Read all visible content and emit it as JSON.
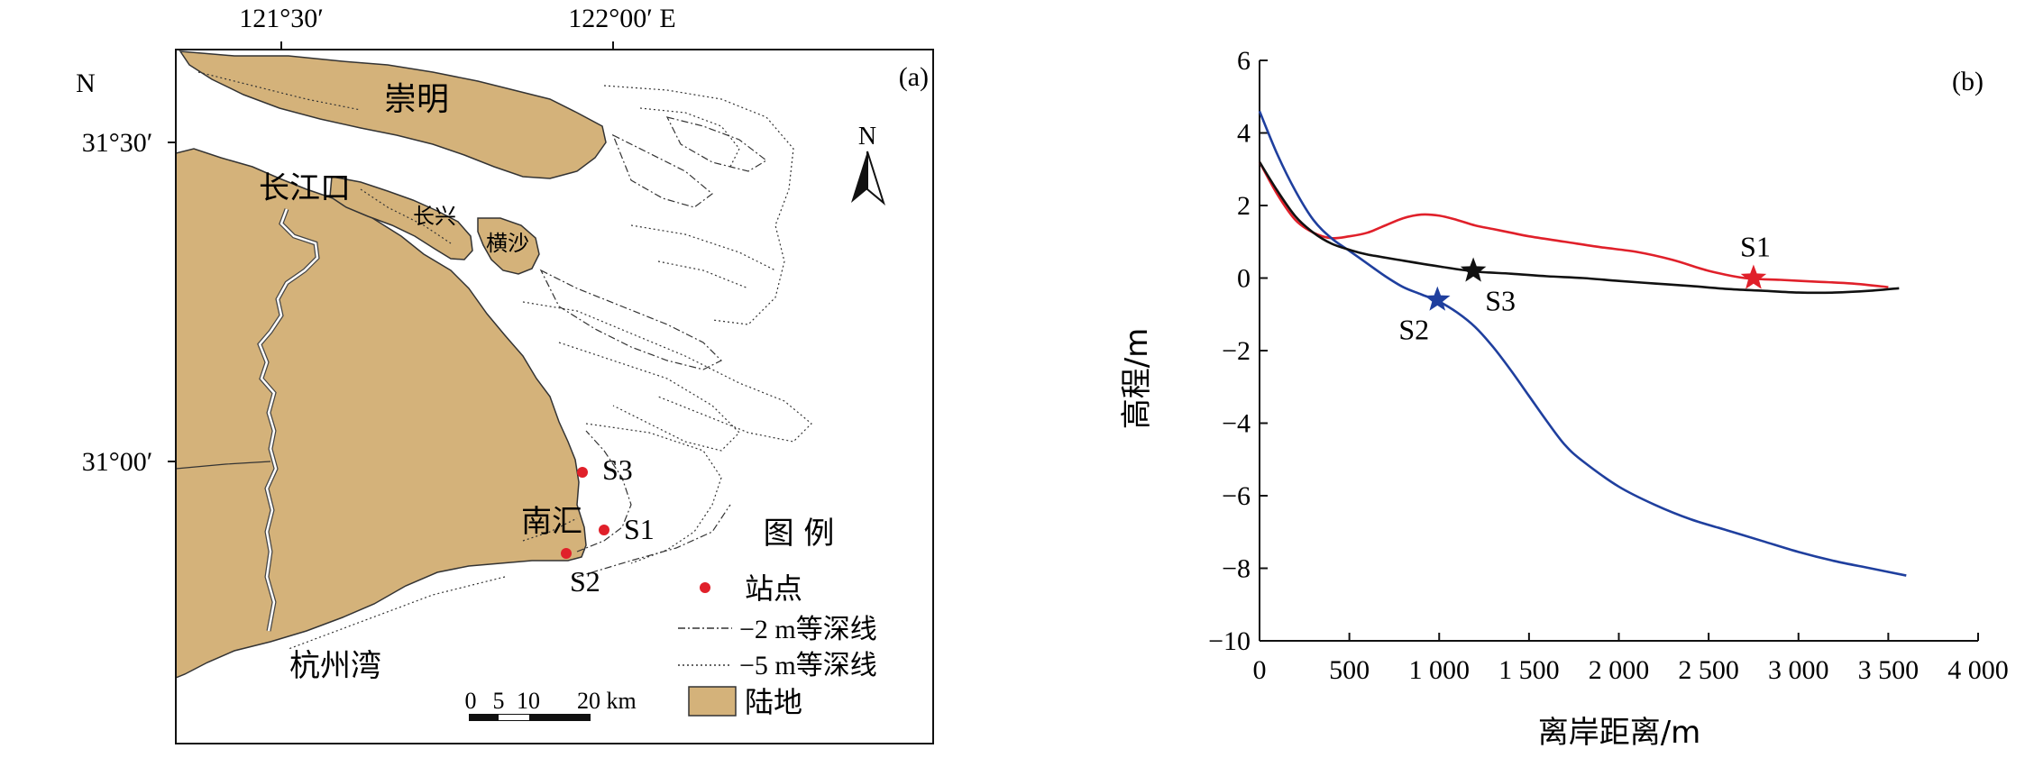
{
  "panel_a": {
    "label": "(a)",
    "top_ticks": [
      "121°30′",
      "122°00′ E"
    ],
    "left_ticks": [
      "N",
      "31°30′",
      "31°00′"
    ],
    "north_arrow": "N",
    "place_names": {
      "chongming": "崇明",
      "changjiangkou": "长江口",
      "changxing": "长兴",
      "hengsha": "横沙",
      "nanhui": "南汇",
      "hangzhouwan": "杭州湾"
    },
    "stations": [
      "S1",
      "S2",
      "S3"
    ],
    "legend": {
      "title": "图 例",
      "items": [
        "站点",
        "−2 m等深线",
        "−5 m等深线",
        "陆地"
      ]
    },
    "scale_bar": {
      "ticks": [
        "0",
        "5",
        "10",
        "20 km"
      ]
    },
    "colors": {
      "land": "#D4B27A",
      "station": "#E0202A"
    }
  },
  "chart_data": {
    "type": "line",
    "panel_label": "(b)",
    "xlabel": "离岸距离/m",
    "ylabel": "高程/m",
    "xlim": [
      0,
      4000
    ],
    "ylim": [
      -10,
      6
    ],
    "xticks": [
      0,
      500,
      1000,
      1500,
      2000,
      2500,
      3000,
      3500,
      4000
    ],
    "xtick_labels": [
      "0",
      "500",
      "1 000",
      "1 500",
      "2 000",
      "2 500",
      "3 000",
      "3 500",
      "4 000"
    ],
    "yticks": [
      -10,
      -8,
      -6,
      -4,
      -2,
      0,
      2,
      4,
      6
    ],
    "ytick_labels": [
      "−10",
      "−8",
      "−6",
      "−4",
      "−2",
      "0",
      "2",
      "4",
      "6"
    ],
    "grid": false,
    "series": [
      {
        "name": "S1",
        "color": "#E0202A",
        "x": [
          0,
          100,
          200,
          300,
          400,
          500,
          600,
          700,
          800,
          900,
          1000,
          1100,
          1200,
          1300,
          1400,
          1500,
          1700,
          1900,
          2100,
          2300,
          2500,
          2700,
          2900,
          3100,
          3300,
          3500
        ],
        "y": [
          3.2,
          2.3,
          1.6,
          1.25,
          1.1,
          1.15,
          1.25,
          1.45,
          1.65,
          1.75,
          1.72,
          1.6,
          1.45,
          1.35,
          1.25,
          1.15,
          1.0,
          0.85,
          0.72,
          0.5,
          0.2,
          0.0,
          -0.05,
          -0.1,
          -0.15,
          -0.25
        ],
        "marker": {
          "x": 2750,
          "y": 0.0,
          "label": "S1"
        }
      },
      {
        "name": "S2",
        "color": "#1F3F9E",
        "x": [
          0,
          100,
          200,
          300,
          400,
          500,
          600,
          700,
          800,
          900,
          1000,
          1100,
          1200,
          1300,
          1400,
          1500,
          1600,
          1700,
          1800,
          2000,
          2200,
          2400,
          2600,
          2800,
          3000,
          3200,
          3400,
          3600
        ],
        "y": [
          4.6,
          3.4,
          2.4,
          1.6,
          1.1,
          0.75,
          0.4,
          0.05,
          -0.25,
          -0.45,
          -0.65,
          -0.95,
          -1.35,
          -1.9,
          -2.55,
          -3.25,
          -3.95,
          -4.6,
          -5.05,
          -5.75,
          -6.25,
          -6.65,
          -6.95,
          -7.25,
          -7.55,
          -7.8,
          -8.0,
          -8.2
        ],
        "marker": {
          "x": 990,
          "y": -0.6,
          "label": "S2"
        }
      },
      {
        "name": "S3",
        "color": "#111111",
        "x": [
          0,
          100,
          200,
          300,
          400,
          500,
          600,
          800,
          1000,
          1200,
          1400,
          1600,
          1800,
          2000,
          2200,
          2400,
          2600,
          2800,
          3000,
          3200,
          3400,
          3560
        ],
        "y": [
          3.2,
          2.4,
          1.7,
          1.25,
          0.95,
          0.78,
          0.65,
          0.48,
          0.32,
          0.18,
          0.12,
          0.05,
          0.0,
          -0.08,
          -0.15,
          -0.22,
          -0.3,
          -0.35,
          -0.4,
          -0.4,
          -0.35,
          -0.28
        ],
        "marker": {
          "x": 1190,
          "y": 0.2,
          "label": "S3"
        }
      }
    ]
  }
}
